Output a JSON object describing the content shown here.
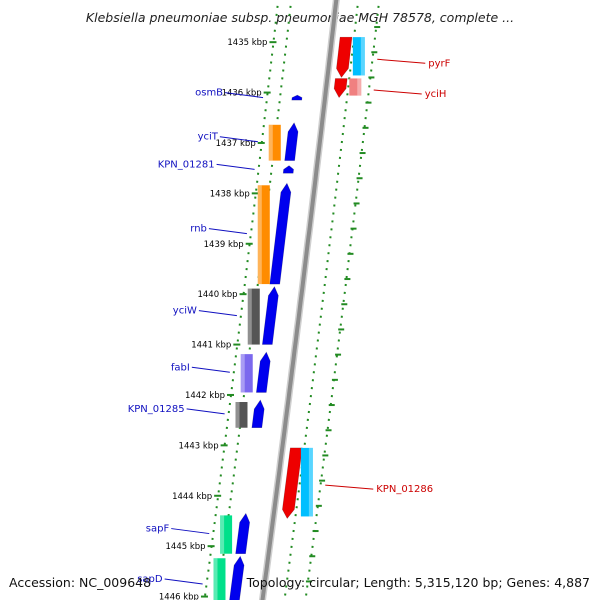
{
  "title": "Klebsiella pneumoniae subsp. pneumoniae MGH 78578, complete ...",
  "footer": {
    "accession": "Accession: NC_009648",
    "summary": "Topology: circular; Length: 5,315,120 bp; Genes: 4,887"
  },
  "colors": {
    "backbone": "#8c8c8c",
    "ticks": "#228b22",
    "forward_label": "#1010c0",
    "reverse_label": "#cc0000"
  },
  "scale": {
    "unit": "kbp",
    "ticks": [
      1435,
      1436,
      1437,
      1438,
      1439,
      1440,
      1441,
      1442,
      1443,
      1444,
      1445,
      1446
    ],
    "tick_labels": [
      "1435 kbp",
      "1436 kbp",
      "1437 kbp",
      "1438 kbp",
      "1439 kbp",
      "1440 kbp",
      "1441 kbp",
      "1442 kbp",
      "1443 kbp",
      "1444 kbp",
      "1445 kbp",
      "1446 kbp"
    ]
  },
  "forward_genes": [
    {
      "label": "osmB",
      "start_kbp": 1436.05,
      "end_kbp": 1436.15,
      "cog_color": null
    },
    {
      "label": "yciT",
      "start_kbp": 1436.6,
      "end_kbp": 1437.35,
      "cog_color": "#ff8c00"
    },
    {
      "label": "KPN_01281",
      "start_kbp": 1437.45,
      "end_kbp": 1437.6,
      "cog_color": null
    },
    {
      "label": "rnb",
      "start_kbp": 1437.8,
      "end_kbp": 1439.8,
      "cog_color": "#ff8c00"
    },
    {
      "label": "yciW",
      "start_kbp": 1439.85,
      "end_kbp": 1441.0,
      "cog_color": "#555555"
    },
    {
      "label": "fabI",
      "start_kbp": 1441.15,
      "end_kbp": 1441.95,
      "cog_color": "#7b68ee"
    },
    {
      "label": "KPN_01285",
      "start_kbp": 1442.1,
      "end_kbp": 1442.65,
      "cog_color": "#555555"
    },
    {
      "label": "sapF",
      "start_kbp": 1444.35,
      "end_kbp": 1445.15,
      "cog_color": "#00e08a"
    },
    {
      "label": "sapD",
      "start_kbp": 1445.2,
      "end_kbp": 1446.3,
      "cog_color": "#00e08a"
    }
  ],
  "reverse_genes": [
    {
      "label": "pyrF",
      "start_kbp": 1434.9,
      "end_kbp": 1435.7,
      "cog_color": "#00bfff"
    },
    {
      "label": "yciH",
      "start_kbp": 1435.72,
      "end_kbp": 1436.1,
      "cog_color": "#f08080"
    },
    {
      "label": "KPN_01286",
      "start_kbp": 1443.05,
      "end_kbp": 1444.45,
      "cog_color": "#00bfff"
    }
  ]
}
